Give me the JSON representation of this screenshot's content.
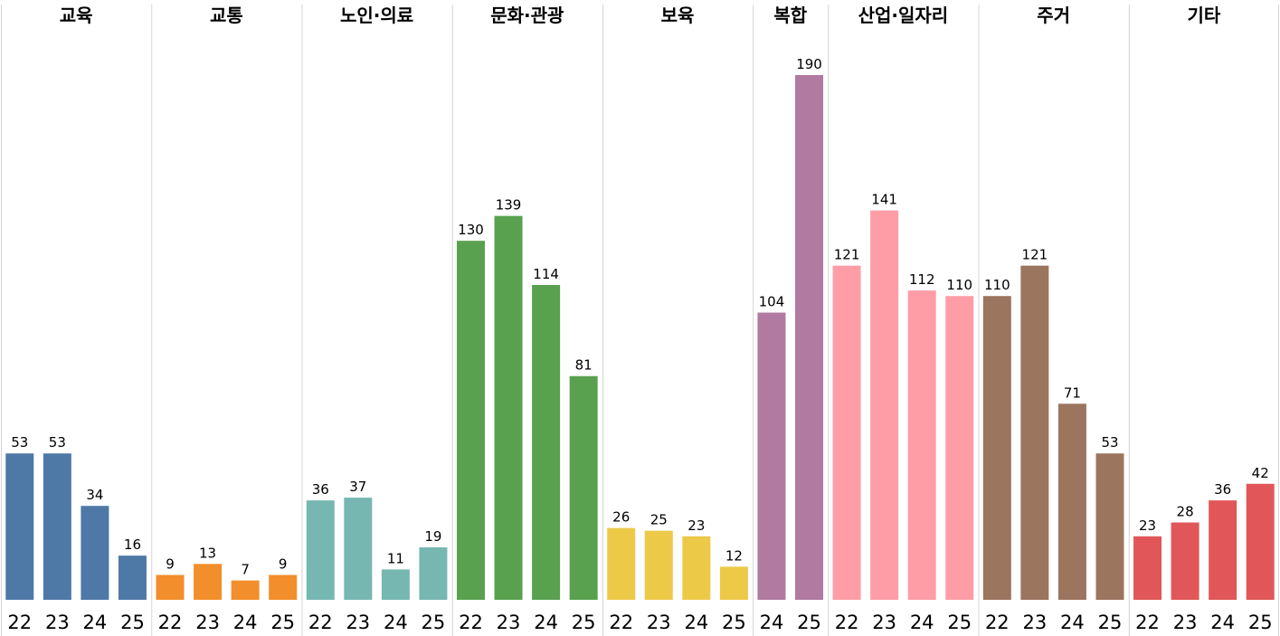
{
  "chart_data": {
    "type": "bar",
    "ylim": [
      0,
      200
    ],
    "grid": false,
    "panels": [
      {
        "title": "교육",
        "color": "#4e79a7",
        "categories": [
          "22",
          "23",
          "24",
          "25"
        ],
        "values": [
          53,
          53,
          34,
          16
        ]
      },
      {
        "title": "교통",
        "color": "#f28e2b",
        "categories": [
          "22",
          "23",
          "24",
          "25"
        ],
        "values": [
          9,
          13,
          7,
          9
        ]
      },
      {
        "title": "노인·의료",
        "color": "#76b7b2",
        "categories": [
          "22",
          "23",
          "24",
          "25"
        ],
        "values": [
          36,
          37,
          11,
          19
        ]
      },
      {
        "title": "문화·관광",
        "color": "#59a14f",
        "categories": [
          "22",
          "23",
          "24",
          "25"
        ],
        "values": [
          130,
          139,
          114,
          81
        ]
      },
      {
        "title": "보육",
        "color": "#edc948",
        "categories": [
          "22",
          "23",
          "24",
          "25"
        ],
        "values": [
          26,
          25,
          23,
          12
        ]
      },
      {
        "title": "복합",
        "color": "#b07aa1",
        "categories": [
          "24",
          "25"
        ],
        "values": [
          104,
          190
        ]
      },
      {
        "title": "산업·일자리",
        "color": "#ff9da7",
        "categories": [
          "22",
          "23",
          "24",
          "25"
        ],
        "values": [
          121,
          141,
          112,
          110
        ]
      },
      {
        "title": "주거",
        "color": "#9c755f",
        "categories": [
          "22",
          "23",
          "24",
          "25"
        ],
        "values": [
          110,
          121,
          71,
          53
        ]
      },
      {
        "title": "기타",
        "color": "#e15759",
        "categories": [
          "22",
          "23",
          "24",
          "25"
        ],
        "values": [
          23,
          28,
          36,
          42
        ]
      }
    ]
  }
}
